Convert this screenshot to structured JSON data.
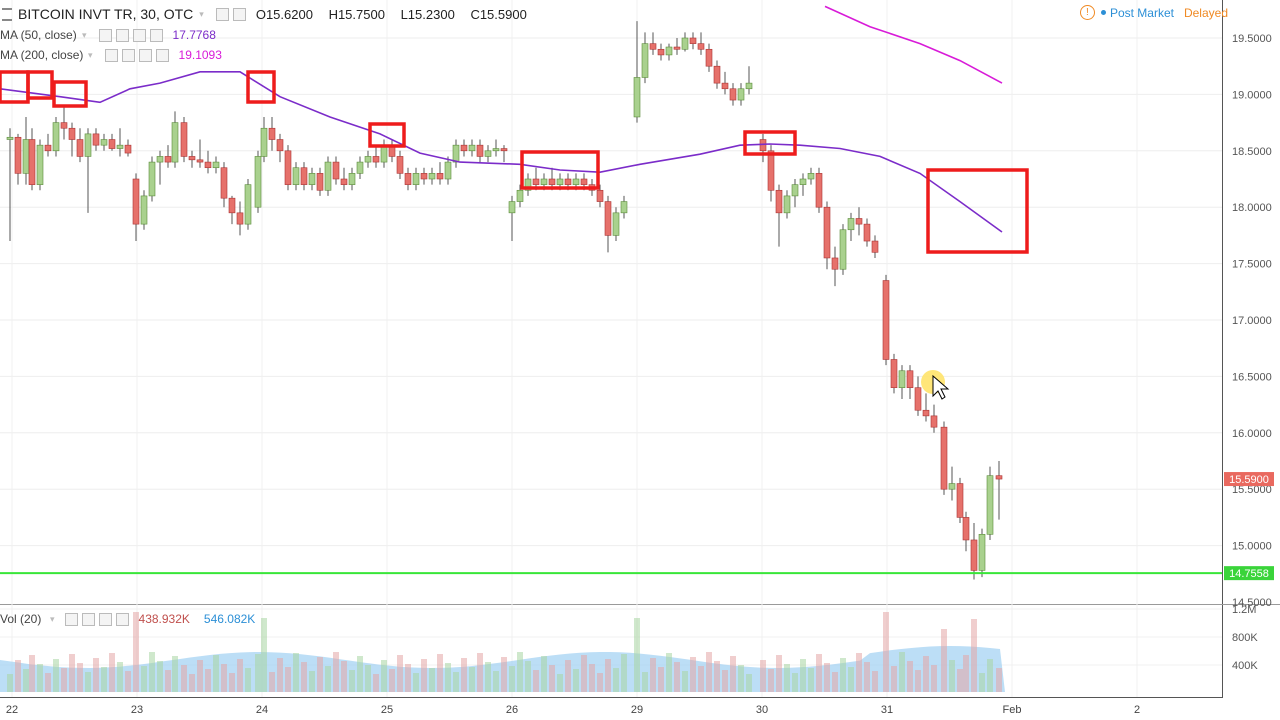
{
  "header": {
    "symbol": "BITCOIN INVT TR, 30, OTC",
    "ohlc": {
      "open": "O15.6200",
      "high": "H15.7500",
      "low": "L15.2300",
      "close": "C15.5900"
    },
    "ma50": {
      "label": "MA (50, close)",
      "value": "17.7768",
      "color": "#7b2cc9"
    },
    "ma200": {
      "label": "MA (200, close)",
      "value": "19.1093",
      "color": "#d81bd8"
    },
    "status": {
      "post_market": "Post Market",
      "delayed": "Delayed"
    }
  },
  "volume_legend": {
    "label": "Vol (20)",
    "value1": "438.932K",
    "value2": "546.082K"
  },
  "chart_data": {
    "type": "candlestick",
    "x_ticks": [
      "22",
      "23",
      "24",
      "25",
      "26",
      "29",
      "30",
      "31",
      "Feb",
      "2"
    ],
    "y_ticks": [
      "19.5000",
      "19.0000",
      "18.5000",
      "18.0000",
      "17.5000",
      "17.0000",
      "16.5000",
      "16.0000",
      "15.5000",
      "15.0000",
      "14.5000"
    ],
    "ylim": [
      14.45,
      19.78
    ],
    "price_label": "15.5900",
    "support_label": "14.7558",
    "support_level": 14.7558,
    "volume_ticks": [
      "1.2M",
      "800K",
      "400K"
    ],
    "ma50": [
      [
        0,
        19.05
      ],
      [
        60,
        18.98
      ],
      [
        100,
        18.93
      ],
      [
        130,
        19.05
      ],
      [
        160,
        19.1
      ],
      [
        200,
        19.2
      ],
      [
        240,
        19.2
      ],
      [
        280,
        18.98
      ],
      [
        330,
        18.8
      ],
      [
        380,
        18.65
      ],
      [
        420,
        18.48
      ],
      [
        460,
        18.4
      ],
      [
        520,
        18.38
      ],
      [
        560,
        18.33
      ],
      [
        600,
        18.31
      ],
      [
        640,
        18.38
      ],
      [
        700,
        18.47
      ],
      [
        740,
        18.55
      ],
      [
        770,
        18.56
      ],
      [
        800,
        18.55
      ],
      [
        840,
        18.52
      ],
      [
        880,
        18.45
      ],
      [
        920,
        18.3
      ],
      [
        960,
        18.05
      ],
      [
        1002,
        17.78
      ]
    ],
    "ma200": [
      [
        825,
        19.78
      ],
      [
        870,
        19.6
      ],
      [
        920,
        19.45
      ],
      [
        960,
        19.3
      ],
      [
        1002,
        19.1
      ]
    ],
    "candles": [
      [
        10,
        18.6,
        18.7,
        17.7,
        18.62
      ],
      [
        18,
        18.62,
        18.65,
        18.2,
        18.3
      ],
      [
        26,
        18.3,
        18.8,
        18.2,
        18.6
      ],
      [
        32,
        18.6,
        18.7,
        18.15,
        18.2
      ],
      [
        40,
        18.2,
        18.6,
        18.15,
        18.55
      ],
      [
        48,
        18.55,
        18.65,
        18.45,
        18.5
      ],
      [
        56,
        18.5,
        18.8,
        18.45,
        18.75
      ],
      [
        64,
        18.75,
        18.9,
        18.6,
        18.7
      ],
      [
        72,
        18.7,
        18.75,
        18.45,
        18.6
      ],
      [
        80,
        18.6,
        18.7,
        18.4,
        18.45
      ],
      [
        88,
        18.45,
        18.7,
        17.95,
        18.65
      ],
      [
        96,
        18.65,
        18.7,
        18.5,
        18.55
      ],
      [
        104,
        18.55,
        18.65,
        18.5,
        18.6
      ],
      [
        112,
        18.6,
        18.65,
        18.5,
        18.52
      ],
      [
        120,
        18.52,
        18.7,
        18.45,
        18.55
      ],
      [
        128,
        18.55,
        18.6,
        18.45,
        18.48
      ],
      [
        136,
        18.25,
        18.3,
        17.7,
        17.85
      ],
      [
        144,
        17.85,
        18.15,
        17.8,
        18.1
      ],
      [
        152,
        18.1,
        18.45,
        18.05,
        18.4
      ],
      [
        160,
        18.4,
        18.5,
        18.2,
        18.45
      ],
      [
        168,
        18.45,
        18.55,
        18.35,
        18.4
      ],
      [
        175,
        18.4,
        18.85,
        18.35,
        18.75
      ],
      [
        184,
        18.75,
        18.8,
        18.4,
        18.45
      ],
      [
        192,
        18.45,
        18.5,
        18.35,
        18.42
      ],
      [
        200,
        18.42,
        18.6,
        18.35,
        18.4
      ],
      [
        208,
        18.4,
        18.5,
        18.3,
        18.35
      ],
      [
        216,
        18.35,
        18.45,
        18.3,
        18.4
      ],
      [
        224,
        18.35,
        18.4,
        18.0,
        18.08
      ],
      [
        232,
        18.08,
        18.1,
        17.85,
        17.95
      ],
      [
        240,
        17.95,
        18.05,
        17.75,
        17.85
      ],
      [
        248,
        17.85,
        18.25,
        17.8,
        18.2
      ],
      [
        258,
        18.0,
        18.5,
        17.95,
        18.45
      ],
      [
        264,
        18.45,
        18.8,
        18.4,
        18.7
      ],
      [
        272,
        18.7,
        18.8,
        18.5,
        18.6
      ],
      [
        280,
        18.6,
        18.65,
        18.4,
        18.5
      ],
      [
        288,
        18.5,
        18.55,
        18.15,
        18.2
      ],
      [
        296,
        18.2,
        18.4,
        18.15,
        18.35
      ],
      [
        304,
        18.35,
        18.4,
        18.15,
        18.2
      ],
      [
        312,
        18.2,
        18.35,
        18.15,
        18.3
      ],
      [
        320,
        18.3,
        18.35,
        18.1,
        18.15
      ],
      [
        328,
        18.15,
        18.45,
        18.1,
        18.4
      ],
      [
        336,
        18.4,
        18.45,
        18.2,
        18.25
      ],
      [
        344,
        18.25,
        18.35,
        18.15,
        18.2
      ],
      [
        352,
        18.2,
        18.35,
        18.15,
        18.3
      ],
      [
        360,
        18.3,
        18.45,
        18.25,
        18.4
      ],
      [
        368,
        18.4,
        18.5,
        18.35,
        18.45
      ],
      [
        376,
        18.45,
        18.55,
        18.35,
        18.4
      ],
      [
        384,
        18.4,
        18.6,
        18.35,
        18.55
      ],
      [
        392,
        18.55,
        18.6,
        18.4,
        18.45
      ],
      [
        400,
        18.45,
        18.5,
        18.25,
        18.3
      ],
      [
        408,
        18.3,
        18.35,
        18.15,
        18.2
      ],
      [
        416,
        18.2,
        18.35,
        18.15,
        18.3
      ],
      [
        424,
        18.3,
        18.35,
        18.2,
        18.25
      ],
      [
        432,
        18.25,
        18.35,
        18.2,
        18.3
      ],
      [
        440,
        18.3,
        18.4,
        18.2,
        18.25
      ],
      [
        448,
        18.25,
        18.45,
        18.2,
        18.4
      ],
      [
        456,
        18.4,
        18.6,
        18.35,
        18.55
      ],
      [
        464,
        18.55,
        18.6,
        18.45,
        18.5
      ],
      [
        472,
        18.5,
        18.6,
        18.45,
        18.55
      ],
      [
        480,
        18.55,
        18.6,
        18.4,
        18.45
      ],
      [
        488,
        18.45,
        18.55,
        18.4,
        18.5
      ],
      [
        496,
        18.5,
        18.6,
        18.45,
        18.52
      ],
      [
        504,
        18.52,
        18.55,
        18.4,
        18.5
      ],
      [
        512,
        17.95,
        18.1,
        17.7,
        18.05
      ],
      [
        520,
        18.05,
        18.2,
        18.0,
        18.15
      ],
      [
        528,
        18.15,
        18.3,
        18.1,
        18.25
      ],
      [
        536,
        18.25,
        18.35,
        18.15,
        18.2
      ],
      [
        544,
        18.2,
        18.3,
        18.15,
        18.25
      ],
      [
        552,
        18.25,
        18.35,
        18.15,
        18.2
      ],
      [
        560,
        18.2,
        18.3,
        18.15,
        18.25
      ],
      [
        568,
        18.25,
        18.3,
        18.15,
        18.2
      ],
      [
        576,
        18.2,
        18.3,
        18.15,
        18.25
      ],
      [
        584,
        18.25,
        18.3,
        18.15,
        18.2
      ],
      [
        592,
        18.2,
        18.25,
        18.1,
        18.15
      ],
      [
        600,
        18.15,
        18.2,
        18.0,
        18.05
      ],
      [
        608,
        18.05,
        18.1,
        17.6,
        17.75
      ],
      [
        616,
        17.75,
        18.0,
        17.7,
        17.95
      ],
      [
        624,
        17.95,
        18.1,
        17.9,
        18.05
      ],
      [
        637,
        18.8,
        19.65,
        18.75,
        19.15
      ],
      [
        645,
        19.15,
        19.55,
        19.1,
        19.45
      ],
      [
        653,
        19.45,
        19.55,
        19.35,
        19.4
      ],
      [
        661,
        19.4,
        19.45,
        19.3,
        19.35
      ],
      [
        669,
        19.35,
        19.45,
        19.3,
        19.42
      ],
      [
        677,
        19.42,
        19.5,
        19.35,
        19.4
      ],
      [
        685,
        19.4,
        19.55,
        19.38,
        19.5
      ],
      [
        693,
        19.5,
        19.55,
        19.4,
        19.45
      ],
      [
        701,
        19.45,
        19.55,
        19.35,
        19.4
      ],
      [
        709,
        19.4,
        19.45,
        19.2,
        19.25
      ],
      [
        717,
        19.25,
        19.3,
        19.05,
        19.1
      ],
      [
        725,
        19.1,
        19.2,
        19.0,
        19.05
      ],
      [
        733,
        19.05,
        19.1,
        18.9,
        18.95
      ],
      [
        741,
        18.95,
        19.1,
        18.9,
        19.05
      ],
      [
        749,
        19.05,
        19.25,
        19.0,
        19.1
      ],
      [
        763,
        18.6,
        18.65,
        18.4,
        18.5
      ],
      [
        771,
        18.5,
        18.55,
        18.05,
        18.15
      ],
      [
        779,
        18.15,
        18.2,
        17.65,
        17.95
      ],
      [
        787,
        17.95,
        18.15,
        17.9,
        18.1
      ],
      [
        795,
        18.1,
        18.25,
        18.0,
        18.2
      ],
      [
        803,
        18.2,
        18.3,
        18.1,
        18.25
      ],
      [
        811,
        18.25,
        18.35,
        18.2,
        18.3
      ],
      [
        819,
        18.3,
        18.35,
        17.95,
        18.0
      ],
      [
        827,
        18.0,
        18.05,
        17.45,
        17.55
      ],
      [
        835,
        17.55,
        17.65,
        17.3,
        17.45
      ],
      [
        843,
        17.45,
        17.85,
        17.4,
        17.8
      ],
      [
        851,
        17.8,
        17.95,
        17.7,
        17.9
      ],
      [
        859,
        17.9,
        18.0,
        17.75,
        17.85
      ],
      [
        867,
        17.85,
        17.9,
        17.65,
        17.7
      ],
      [
        875,
        17.7,
        17.75,
        17.55,
        17.6
      ],
      [
        886,
        17.35,
        17.4,
        16.6,
        16.65
      ],
      [
        894,
        16.65,
        16.7,
        16.35,
        16.4
      ],
      [
        902,
        16.4,
        16.6,
        16.3,
        16.55
      ],
      [
        910,
        16.55,
        16.6,
        16.3,
        16.4
      ],
      [
        918,
        16.4,
        16.5,
        16.15,
        16.2
      ],
      [
        926,
        16.2,
        16.35,
        16.1,
        16.15
      ],
      [
        934,
        16.15,
        16.25,
        16.0,
        16.05
      ],
      [
        944,
        16.05,
        16.1,
        15.45,
        15.5
      ],
      [
        952,
        15.5,
        15.7,
        15.4,
        15.55
      ],
      [
        960,
        15.55,
        15.6,
        15.2,
        15.25
      ],
      [
        966,
        15.25,
        15.3,
        14.95,
        15.05
      ],
      [
        974,
        15.05,
        15.2,
        14.7,
        14.78
      ],
      [
        982,
        14.78,
        15.15,
        14.72,
        15.1
      ],
      [
        990,
        15.1,
        15.7,
        15.05,
        15.62
      ],
      [
        999,
        15.62,
        15.75,
        15.23,
        15.59
      ]
    ]
  }
}
